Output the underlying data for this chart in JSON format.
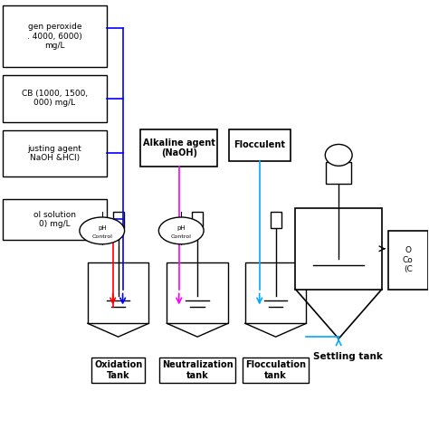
{
  "bg_color": "#ffffff",
  "box1_text": "gen peroxide\n. 4000, 6000)\nmg/L",
  "box2_text": "CB (1000, 1500,\n000) mg/L",
  "box3_text": "justing agent\nNaOH &HCl)",
  "box4_text": "ol solution\n0) mg/L",
  "alkaline_text": "Alkaline agent\n(NaOH)",
  "flocculent_text": "Flocculent",
  "output_text": "O\nCo\n(C",
  "label1": "Oxidation\nTank",
  "label2": "Neutralization\ntank",
  "label3": "Flocculation\ntank",
  "settling_text": "Settling tank",
  "blue_color": "#0000ff",
  "magenta_color": "#ff00ff",
  "cyan_color": "#00aaff",
  "red_color": "#ff0000",
  "black_color": "#000000",
  "white_color": "#ffffff"
}
